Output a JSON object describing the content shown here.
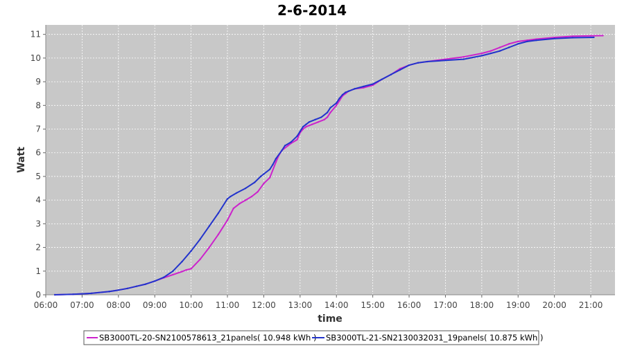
{
  "chart_data": {
    "type": "line",
    "title": "2-6-2014",
    "xlabel": "time",
    "ylabel": "Watt",
    "xlim": [
      "06:00",
      "21:40"
    ],
    "ylim": [
      0,
      11.4
    ],
    "x_ticks": [
      "06:00",
      "07:00",
      "08:00",
      "09:00",
      "10:00",
      "11:00",
      "12:00",
      "13:00",
      "14:00",
      "15:00",
      "16:00",
      "17:00",
      "18:00",
      "19:00",
      "20:00",
      "21:00"
    ],
    "y_ticks": [
      0,
      1,
      2,
      3,
      4,
      5,
      6,
      7,
      8,
      9,
      10,
      11
    ],
    "grid": true,
    "legend_position": "bottom",
    "background_color": "#c8c8c8",
    "series": [
      {
        "name": "SB3000TL-20-SN2100578613_21panels( 10.948 kWh )",
        "color": "#cc22cc",
        "x": [
          "06:15",
          "06:45",
          "07:15",
          "07:45",
          "08:00",
          "08:15",
          "08:30",
          "08:45",
          "09:00",
          "09:15",
          "09:30",
          "09:45",
          "09:52",
          "10:00",
          "10:15",
          "10:30",
          "10:45",
          "11:00",
          "11:05",
          "11:10",
          "11:20",
          "11:30",
          "11:40",
          "11:50",
          "12:00",
          "12:10",
          "12:20",
          "12:25",
          "12:30",
          "12:40",
          "12:45",
          "12:55",
          "13:00",
          "13:05",
          "13:10",
          "13:15",
          "13:20",
          "13:30",
          "13:40",
          "13:45",
          "13:50",
          "14:00",
          "14:05",
          "14:10",
          "14:15",
          "14:20",
          "14:30",
          "14:45",
          "15:00",
          "15:15",
          "15:30",
          "15:45",
          "16:00",
          "16:15",
          "16:30",
          "17:00",
          "17:30",
          "18:00",
          "18:15",
          "18:30",
          "18:45",
          "19:00",
          "19:15",
          "19:30",
          "20:00",
          "20:30",
          "21:00",
          "21:20"
        ],
        "y": [
          0.0,
          0.02,
          0.06,
          0.14,
          0.2,
          0.27,
          0.36,
          0.45,
          0.58,
          0.72,
          0.85,
          0.98,
          1.05,
          1.1,
          1.5,
          2.0,
          2.55,
          3.15,
          3.4,
          3.65,
          3.85,
          4.0,
          4.15,
          4.35,
          4.7,
          4.95,
          5.6,
          5.9,
          6.1,
          6.3,
          6.4,
          6.55,
          6.85,
          7.0,
          7.1,
          7.15,
          7.2,
          7.3,
          7.4,
          7.5,
          7.7,
          8.0,
          8.2,
          8.4,
          8.5,
          8.6,
          8.7,
          8.75,
          8.85,
          9.1,
          9.3,
          9.55,
          9.7,
          9.8,
          9.85,
          9.95,
          10.05,
          10.2,
          10.3,
          10.45,
          10.6,
          10.7,
          10.75,
          10.8,
          10.87,
          10.92,
          10.94,
          10.948
        ]
      },
      {
        "name": "SB3000TL-21-SN2130032031_19panels( 10.875 kWh )",
        "color": "#2233cc",
        "x": [
          "06:15",
          "06:45",
          "07:15",
          "07:45",
          "08:00",
          "08:15",
          "08:30",
          "08:45",
          "09:00",
          "09:15",
          "09:30",
          "09:45",
          "10:00",
          "10:15",
          "10:30",
          "10:45",
          "11:00",
          "11:05",
          "11:15",
          "11:30",
          "11:45",
          "11:55",
          "12:00",
          "12:10",
          "12:15",
          "12:20",
          "12:30",
          "12:35",
          "12:45",
          "12:55",
          "13:00",
          "13:05",
          "13:10",
          "13:15",
          "13:25",
          "13:35",
          "13:45",
          "13:50",
          "14:00",
          "14:05",
          "14:10",
          "14:15",
          "14:20",
          "14:30",
          "14:45",
          "15:00",
          "15:15",
          "15:30",
          "15:45",
          "16:00",
          "16:15",
          "16:30",
          "17:00",
          "17:30",
          "18:00",
          "18:15",
          "18:30",
          "18:45",
          "19:00",
          "19:15",
          "19:30",
          "20:00",
          "20:30",
          "21:05"
        ],
        "y": [
          0.0,
          0.02,
          0.06,
          0.14,
          0.2,
          0.27,
          0.36,
          0.45,
          0.58,
          0.74,
          1.0,
          1.4,
          1.85,
          2.35,
          2.9,
          3.45,
          4.05,
          4.15,
          4.3,
          4.5,
          4.75,
          5.0,
          5.1,
          5.3,
          5.5,
          5.75,
          6.1,
          6.3,
          6.45,
          6.7,
          6.9,
          7.1,
          7.2,
          7.3,
          7.4,
          7.5,
          7.7,
          7.9,
          8.1,
          8.3,
          8.45,
          8.55,
          8.6,
          8.7,
          8.8,
          8.9,
          9.1,
          9.3,
          9.5,
          9.7,
          9.8,
          9.85,
          9.9,
          9.95,
          10.1,
          10.2,
          10.3,
          10.45,
          10.6,
          10.7,
          10.75,
          10.82,
          10.86,
          10.875
        ]
      }
    ]
  }
}
